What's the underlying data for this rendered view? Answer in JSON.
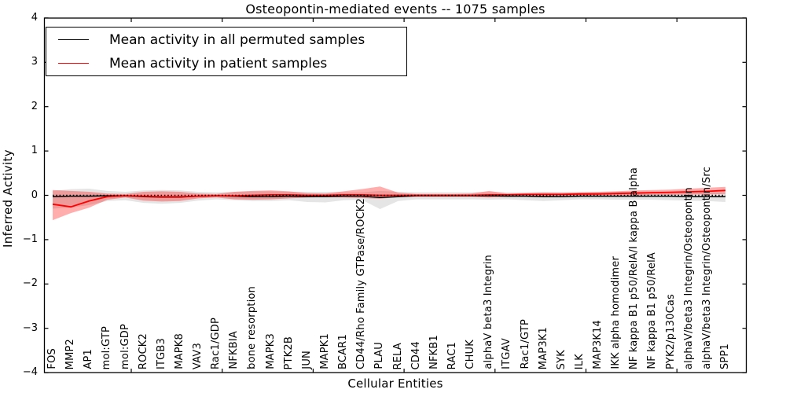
{
  "figure": {
    "title": "Osteopontin-mediated events -- 1075 samples",
    "xlabel": "Cellular Entities",
    "ylabel": "Inferred Activity"
  },
  "legend": {
    "entries": [
      {
        "label": "Mean activity in all permuted samples",
        "color": "#000000"
      },
      {
        "label": "Mean activity in patient samples",
        "color": "#ff0000"
      }
    ]
  },
  "chart_data": {
    "type": "line",
    "title": "Osteopontin-mediated events -- 1075 samples",
    "xlabel": "Cellular Entities",
    "ylabel": "Inferred Activity",
    "ylim": [
      -4,
      4
    ],
    "yticks": [
      -4,
      -3,
      -2,
      -1,
      0,
      1,
      2,
      3,
      4
    ],
    "grid": false,
    "legend_position": "upper left",
    "zero_line": 0,
    "categories": [
      "FOS",
      "MMP2",
      "AP1",
      "mol:GTP",
      "mol:GDP",
      "ROCK2",
      "ITGB3",
      "MAPK8",
      "VAV3",
      "Rac1/GDP",
      "NFKBIA",
      "bone resorption",
      "MAPK3",
      "PTK2B",
      "JUN",
      "MAPK1",
      "BCAR1",
      "CD44/Rho Family GTPase/ROCK2",
      "PLAU",
      "RELA",
      "CD44",
      "NFKB1",
      "RAC1",
      "CHUK",
      "alphaV beta3 Integrin",
      "ITGAV",
      "Rac1/GTP",
      "MAP3K1",
      "SYK",
      "ILK",
      "MAP3K14",
      "IKK alpha homodimer",
      "NF kappa B1 p50/RelA/I kappa B alpha",
      "NF kappa B1 p50/RelA",
      "PYK2/p130Cas",
      "alphaV/beta3 Integrin/Osteopontin",
      "alphaV/beta3 Integrin/Osteopontin/Src",
      "SPP1"
    ],
    "series": [
      {
        "name": "Mean activity in all permuted samples",
        "color": "#000000",
        "band_color": "#888888",
        "values": [
          -0.03,
          -0.02,
          -0.02,
          -0.01,
          -0.01,
          -0.03,
          -0.04,
          -0.04,
          -0.02,
          -0.01,
          -0.02,
          -0.03,
          -0.03,
          -0.02,
          -0.03,
          -0.03,
          -0.02,
          -0.02,
          -0.05,
          -0.03,
          -0.01,
          -0.01,
          -0.01,
          -0.01,
          -0.01,
          -0.02,
          -0.02,
          -0.03,
          -0.03,
          -0.02,
          -0.02,
          -0.02,
          -0.02,
          -0.02,
          -0.02,
          -0.03,
          -0.03,
          -0.03
        ],
        "band_hi": [
          0.1,
          0.14,
          0.15,
          0.1,
          0.08,
          0.11,
          0.12,
          0.11,
          0.08,
          0.07,
          0.08,
          0.09,
          0.09,
          0.08,
          0.08,
          0.08,
          0.07,
          0.07,
          0.1,
          0.08,
          0.07,
          0.07,
          0.07,
          0.07,
          0.07,
          0.07,
          0.07,
          0.08,
          0.07,
          0.07,
          0.07,
          0.08,
          0.08,
          0.08,
          0.08,
          0.08,
          0.07,
          0.06
        ],
        "band_lo": [
          -0.3,
          -0.28,
          -0.22,
          -0.13,
          -0.11,
          -0.17,
          -0.19,
          -0.17,
          -0.12,
          -0.09,
          -0.11,
          -0.13,
          -0.13,
          -0.11,
          -0.15,
          -0.16,
          -0.11,
          -0.1,
          -0.31,
          -0.13,
          -0.09,
          -0.09,
          -0.09,
          -0.09,
          -0.1,
          -0.09,
          -0.11,
          -0.13,
          -0.11,
          -0.09,
          -0.09,
          -0.1,
          -0.1,
          -0.1,
          -0.11,
          -0.12,
          -0.13,
          -0.15
        ]
      },
      {
        "name": "Mean activity in patient samples",
        "color": "#ff0000",
        "band_color": "#ff0000",
        "values": [
          -0.2,
          -0.26,
          -0.13,
          -0.03,
          -0.01,
          -0.02,
          -0.03,
          -0.03,
          -0.02,
          -0.01,
          -0.01,
          0.0,
          0.01,
          0.01,
          0.0,
          0.0,
          0.01,
          0.01,
          0.0,
          0.0,
          0.0,
          0.0,
          0.0,
          0.0,
          0.01,
          0.01,
          0.02,
          0.02,
          0.02,
          0.03,
          0.03,
          0.04,
          0.05,
          0.06,
          0.07,
          0.08,
          0.09,
          0.11
        ],
        "band_hi": [
          0.12,
          0.1,
          0.08,
          0.04,
          0.03,
          0.08,
          0.09,
          0.08,
          0.04,
          0.03,
          0.08,
          0.1,
          0.11,
          0.09,
          0.05,
          0.04,
          0.09,
          0.14,
          0.2,
          0.06,
          0.03,
          0.03,
          0.03,
          0.04,
          0.1,
          0.04,
          0.05,
          0.06,
          0.06,
          0.07,
          0.08,
          0.09,
          0.11,
          0.12,
          0.13,
          0.15,
          0.17,
          0.19
        ],
        "band_lo": [
          -0.56,
          -0.4,
          -0.28,
          -0.1,
          -0.05,
          -0.12,
          -0.14,
          -0.13,
          -0.07,
          -0.05,
          -0.09,
          -0.1,
          -0.09,
          -0.07,
          -0.05,
          -0.04,
          -0.05,
          -0.06,
          -0.08,
          -0.04,
          -0.03,
          -0.03,
          -0.03,
          -0.03,
          -0.05,
          -0.03,
          -0.02,
          -0.02,
          -0.01,
          -0.01,
          0.0,
          0.0,
          0.0,
          0.01,
          0.01,
          0.02,
          0.02,
          0.03
        ]
      }
    ]
  }
}
